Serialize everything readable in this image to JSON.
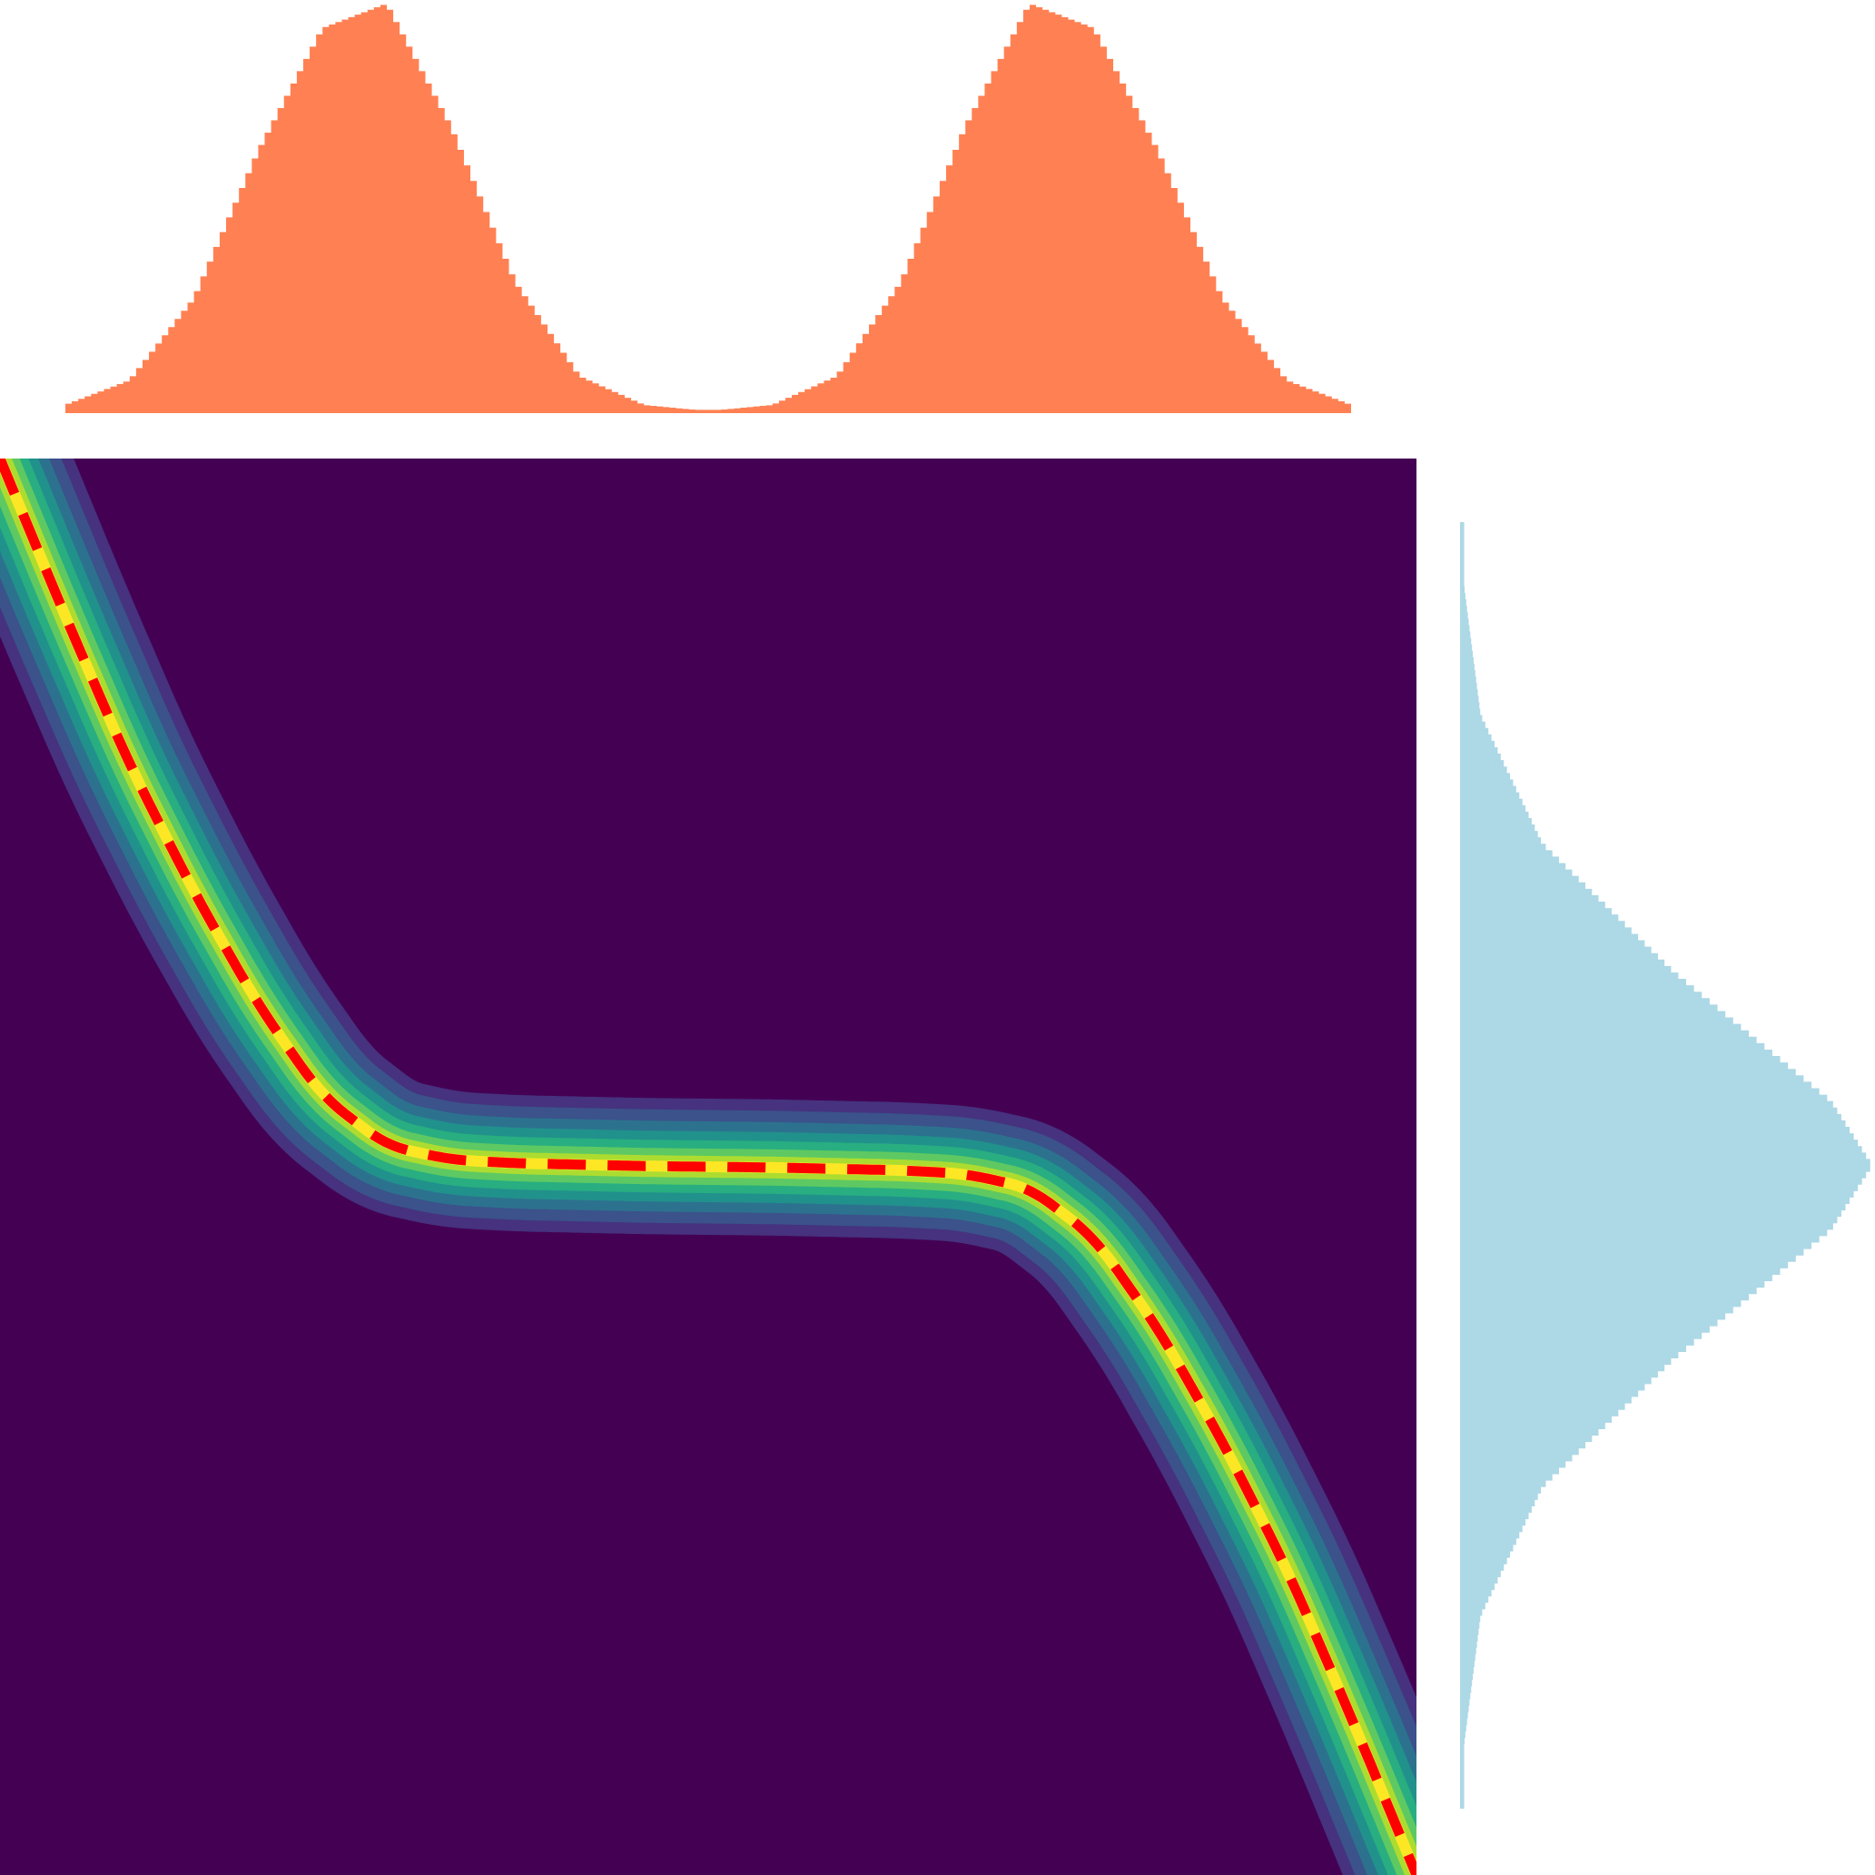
{
  "chart_data": {
    "type": "heatmap",
    "title": "",
    "xlabel": "",
    "ylabel": "",
    "panels": [
      "top-marginal",
      "joint-density",
      "right-marginal"
    ],
    "x_range": [
      -1.1,
      1.1
    ],
    "y_range": [
      -1.0,
      1.0
    ],
    "grid": false,
    "legend": "none",
    "joint_density": {
      "colormap": "viridis",
      "transport_curve": {
        "style": "dashed",
        "color": "#ff0000",
        "x": [
          -1.1,
          -1.0,
          -0.9,
          -0.8,
          -0.7,
          -0.6,
          -0.5,
          -0.4,
          -0.3,
          -0.2,
          -0.1,
          0.0,
          0.1,
          0.2,
          0.3,
          0.4,
          0.5,
          0.6,
          0.7,
          0.8,
          0.9,
          1.0,
          1.1
        ],
        "y": [
          1.0,
          0.78,
          0.57,
          0.39,
          0.23,
          0.1,
          0.03,
          0.01,
          0.005,
          0.003,
          0.001,
          0.0,
          -0.001,
          -0.003,
          -0.005,
          -0.01,
          -0.03,
          -0.1,
          -0.23,
          -0.39,
          -0.57,
          -0.78,
          -1.0
        ]
      }
    },
    "top_marginal": {
      "kind": "histogram",
      "orientation": "horizontal-axis",
      "color": "#ff8153",
      "bins": 200,
      "x": [
        -1.0,
        -0.9,
        -0.8,
        -0.7,
        -0.6,
        -0.5,
        -0.4,
        -0.3,
        -0.2,
        -0.1,
        0.0,
        0.1,
        0.2,
        0.3,
        0.4,
        0.5,
        0.6,
        0.7,
        0.8,
        0.9,
        1.0
      ],
      "density": [
        0.02,
        0.08,
        0.28,
        0.64,
        0.94,
        1.0,
        0.7,
        0.32,
        0.09,
        0.02,
        0.005,
        0.02,
        0.09,
        0.32,
        0.7,
        1.0,
        0.94,
        0.64,
        0.28,
        0.08,
        0.02
      ]
    },
    "right_marginal": {
      "kind": "histogram",
      "orientation": "vertical-axis",
      "color": "#add8e6",
      "bins": 200,
      "y": [
        0.9,
        0.7,
        0.5,
        0.3,
        0.1,
        0.0,
        -0.1,
        -0.3,
        -0.5,
        -0.7,
        -0.9
      ],
      "density": [
        0.01,
        0.05,
        0.2,
        0.52,
        0.9,
        1.0,
        0.9,
        0.52,
        0.2,
        0.05,
        0.01
      ]
    }
  }
}
